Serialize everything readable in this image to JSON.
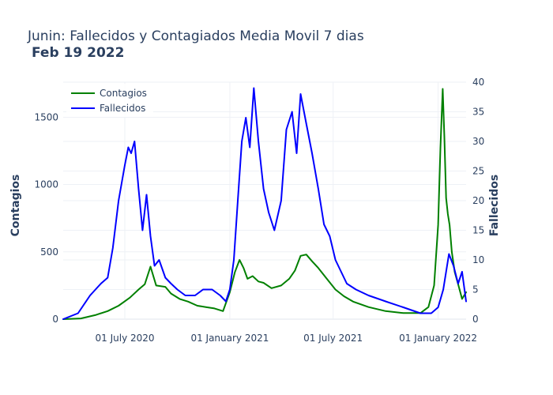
{
  "chart_data": {
    "type": "line",
    "title": "Junin: Fallecidos y Contagiados Media Movil 7 dias",
    "subtitle": "Feb 19 2022",
    "ylabel": "Contagios",
    "y2label": "Fallecidos",
    "xlim": [
      "2020-03-15",
      "2022-02-19"
    ],
    "ylim": [
      0,
      1760
    ],
    "y2lim": [
      0,
      40
    ],
    "x_ticks": [
      {
        "date": "2020-07-01",
        "label": "01 July 2020"
      },
      {
        "date": "2021-01-01",
        "label": "01 January 2021"
      },
      {
        "date": "2021-07-01",
        "label": "01 July 2021"
      },
      {
        "date": "2022-01-01",
        "label": "01 January 2022"
      }
    ],
    "y_ticks": [
      0,
      500,
      1000,
      1500
    ],
    "y2_ticks": [
      0,
      5,
      10,
      15,
      20,
      25,
      30,
      35,
      40
    ],
    "legend_position": "top-left",
    "grid": true,
    "series": [
      {
        "name": "Contagios",
        "axis": "y",
        "color": "#008000",
        "x": [
          "2020-03-15",
          "2020-04-15",
          "2020-05-10",
          "2020-06-01",
          "2020-06-20",
          "2020-07-10",
          "2020-07-25",
          "2020-08-05",
          "2020-08-15",
          "2020-08-25",
          "2020-09-10",
          "2020-09-20",
          "2020-10-05",
          "2020-10-20",
          "2020-11-05",
          "2020-11-20",
          "2020-12-05",
          "2020-12-20",
          "2021-01-01",
          "2021-01-10",
          "2021-01-18",
          "2021-01-25",
          "2021-02-01",
          "2021-02-10",
          "2021-02-20",
          "2021-03-01",
          "2021-03-15",
          "2021-04-01",
          "2021-04-15",
          "2021-04-25",
          "2021-05-05",
          "2021-05-15",
          "2021-05-25",
          "2021-06-05",
          "2021-06-20",
          "2021-07-05",
          "2021-07-20",
          "2021-08-05",
          "2021-09-01",
          "2021-10-01",
          "2021-11-01",
          "2021-12-01",
          "2021-12-15",
          "2021-12-25",
          "2022-01-01",
          "2022-01-05",
          "2022-01-09",
          "2022-01-12",
          "2022-01-15",
          "2022-01-18",
          "2022-01-21",
          "2022-01-25",
          "2022-01-30",
          "2022-02-05",
          "2022-02-12",
          "2022-02-19"
        ],
        "values": [
          0,
          5,
          30,
          60,
          100,
          160,
          220,
          260,
          390,
          250,
          240,
          190,
          150,
          130,
          100,
          90,
          80,
          60,
          200,
          350,
          440,
          380,
          300,
          320,
          280,
          270,
          230,
          250,
          300,
          360,
          470,
          480,
          430,
          380,
          300,
          220,
          170,
          130,
          90,
          60,
          45,
          45,
          90,
          250,
          700,
          1270,
          1710,
          1350,
          900,
          780,
          700,
          500,
          350,
          260,
          150,
          200
        ]
      },
      {
        "name": "Fallecidos",
        "axis": "y2",
        "color": "#0000ff",
        "x": [
          "2020-03-15",
          "2020-04-10",
          "2020-05-01",
          "2020-05-20",
          "2020-06-01",
          "2020-06-10",
          "2020-06-20",
          "2020-07-01",
          "2020-07-07",
          "2020-07-12",
          "2020-07-18",
          "2020-07-25",
          "2020-08-01",
          "2020-08-08",
          "2020-08-15",
          "2020-08-22",
          "2020-08-30",
          "2020-09-10",
          "2020-09-20",
          "2020-10-01",
          "2020-10-15",
          "2020-11-01",
          "2020-11-15",
          "2020-12-01",
          "2020-12-15",
          "2020-12-25",
          "2021-01-01",
          "2021-01-08",
          "2021-01-15",
          "2021-01-22",
          "2021-01-29",
          "2021-02-05",
          "2021-02-12",
          "2021-02-20",
          "2021-03-01",
          "2021-03-10",
          "2021-03-20",
          "2021-04-01",
          "2021-04-10",
          "2021-04-20",
          "2021-04-28",
          "2021-05-05",
          "2021-05-15",
          "2021-05-25",
          "2021-06-05",
          "2021-06-15",
          "2021-06-25",
          "2021-07-05",
          "2021-07-15",
          "2021-07-25",
          "2021-08-10",
          "2021-09-01",
          "2021-10-01",
          "2021-11-01",
          "2021-12-01",
          "2021-12-20",
          "2022-01-01",
          "2022-01-10",
          "2022-01-20",
          "2022-01-28",
          "2022-02-05",
          "2022-02-12",
          "2022-02-19"
        ],
        "values": [
          0,
          1,
          4,
          6,
          7,
          12,
          20,
          26,
          29,
          28,
          30,
          22,
          15,
          21,
          14,
          9,
          10,
          7,
          6,
          5,
          4,
          4,
          5,
          5,
          4,
          3,
          5,
          10,
          20,
          30,
          34,
          29,
          39,
          30,
          22,
          18,
          15,
          20,
          32,
          35,
          28,
          38,
          33,
          28,
          22,
          16,
          14,
          10,
          8,
          6,
          5,
          4,
          3,
          2,
          1,
          1,
          2,
          5,
          11,
          9,
          6,
          8,
          3
        ]
      }
    ]
  }
}
